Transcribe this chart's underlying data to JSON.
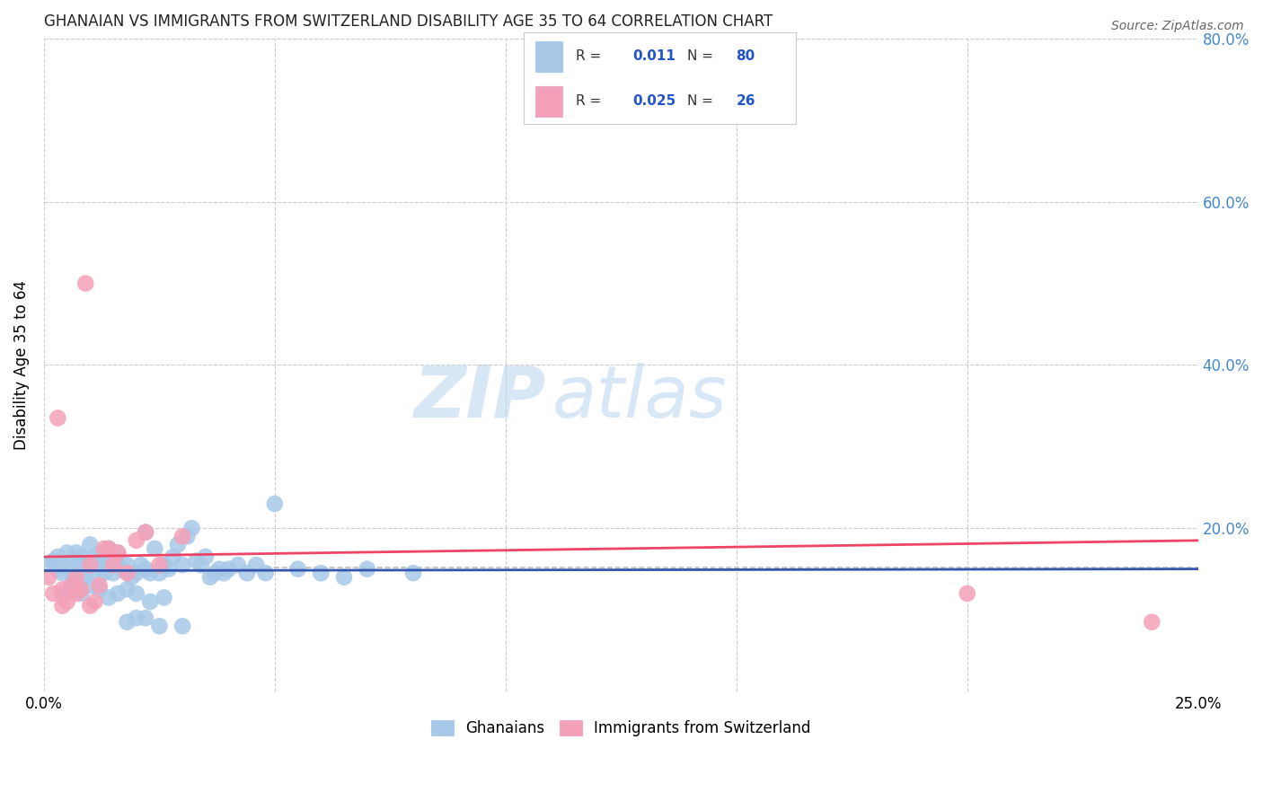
{
  "title": "GHANAIAN VS IMMIGRANTS FROM SWITZERLAND DISABILITY AGE 35 TO 64 CORRELATION CHART",
  "source": "Source: ZipAtlas.com",
  "ylabel": "Disability Age 35 to 64",
  "xlim": [
    0.0,
    0.25
  ],
  "ylim": [
    0.0,
    0.8
  ],
  "xtick_positions": [
    0.0,
    0.05,
    0.1,
    0.15,
    0.2,
    0.25
  ],
  "xticklabels": [
    "0.0%",
    "",
    "",
    "",
    "",
    "25.0%"
  ],
  "ytick_positions": [
    0.0,
    0.2,
    0.4,
    0.6,
    0.8
  ],
  "yticklabels": [
    "",
    "20.0%",
    "40.0%",
    "60.0%",
    "80.0%"
  ],
  "color_blue": "#a8c8e8",
  "color_pink": "#f4a0b8",
  "trendline_blue": "#3355aa",
  "trendline_pink": "#ee4466",
  "refline_color": "#bbbbbb",
  "watermark_zip": "ZIP",
  "watermark_atlas": "atlas",
  "ghanaian_x": [
    0.001,
    0.002,
    0.003,
    0.003,
    0.004,
    0.005,
    0.005,
    0.006,
    0.006,
    0.007,
    0.007,
    0.008,
    0.008,
    0.009,
    0.009,
    0.01,
    0.01,
    0.011,
    0.011,
    0.012,
    0.012,
    0.013,
    0.013,
    0.014,
    0.014,
    0.015,
    0.015,
    0.016,
    0.016,
    0.017,
    0.018,
    0.019,
    0.02,
    0.021,
    0.022,
    0.022,
    0.023,
    0.024,
    0.025,
    0.026,
    0.027,
    0.028,
    0.029,
    0.03,
    0.031,
    0.032,
    0.033,
    0.034,
    0.035,
    0.036,
    0.037,
    0.038,
    0.039,
    0.04,
    0.042,
    0.044,
    0.046,
    0.048,
    0.05,
    0.055,
    0.06,
    0.065,
    0.07,
    0.08,
    0.004,
    0.006,
    0.008,
    0.01,
    0.012,
    0.014,
    0.016,
    0.018,
    0.02,
    0.023,
    0.026,
    0.03,
    0.018,
    0.02,
    0.022,
    0.025
  ],
  "ghanaian_y": [
    0.155,
    0.16,
    0.165,
    0.15,
    0.145,
    0.17,
    0.155,
    0.145,
    0.16,
    0.17,
    0.14,
    0.155,
    0.165,
    0.15,
    0.14,
    0.18,
    0.155,
    0.165,
    0.155,
    0.145,
    0.17,
    0.155,
    0.145,
    0.175,
    0.155,
    0.145,
    0.16,
    0.17,
    0.155,
    0.15,
    0.155,
    0.14,
    0.145,
    0.155,
    0.15,
    0.195,
    0.145,
    0.175,
    0.145,
    0.155,
    0.15,
    0.165,
    0.18,
    0.155,
    0.19,
    0.2,
    0.16,
    0.155,
    0.165,
    0.14,
    0.145,
    0.15,
    0.145,
    0.15,
    0.155,
    0.145,
    0.155,
    0.145,
    0.23,
    0.15,
    0.145,
    0.14,
    0.15,
    0.145,
    0.12,
    0.13,
    0.12,
    0.13,
    0.125,
    0.115,
    0.12,
    0.125,
    0.12,
    0.11,
    0.115,
    0.08,
    0.085,
    0.09,
    0.09,
    0.08
  ],
  "swiss_x": [
    0.001,
    0.002,
    0.003,
    0.004,
    0.005,
    0.006,
    0.007,
    0.008,
    0.009,
    0.01,
    0.011,
    0.012,
    0.013,
    0.014,
    0.015,
    0.016,
    0.018,
    0.02,
    0.022,
    0.025,
    0.03,
    0.2,
    0.24,
    0.004,
    0.007,
    0.01
  ],
  "swiss_y": [
    0.14,
    0.12,
    0.335,
    0.125,
    0.11,
    0.13,
    0.12,
    0.125,
    0.5,
    0.105,
    0.11,
    0.13,
    0.175,
    0.175,
    0.155,
    0.17,
    0.145,
    0.185,
    0.195,
    0.155,
    0.19,
    0.12,
    0.085,
    0.105,
    0.14,
    0.155
  ],
  "blue_trend_x": [
    0.0,
    0.25
  ],
  "blue_trend_y": [
    0.148,
    0.15
  ],
  "pink_trend_x": [
    0.0,
    0.25
  ],
  "pink_trend_y": [
    0.165,
    0.185
  ],
  "ref_line_x": [
    0.048,
    0.25
  ],
  "ref_line_y": [
    0.152,
    0.152
  ]
}
